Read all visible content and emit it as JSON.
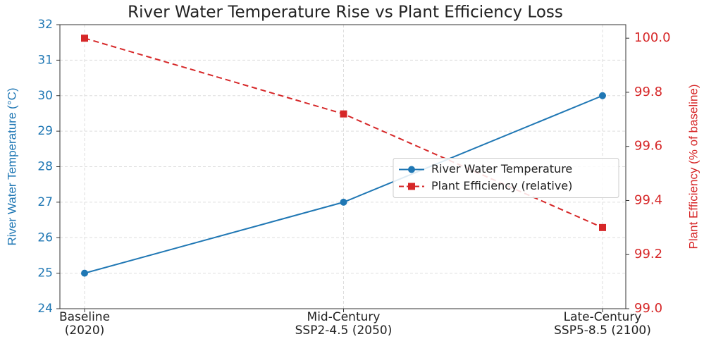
{
  "chart_data": {
    "type": "line",
    "title": "River Water Temperature Rise vs Plant Efficiency Loss",
    "categories": [
      "Baseline\n(2020)",
      "Mid-Century\nSSP2-4.5 (2050)",
      "Late-Century\nSSP5-8.5 (2100)"
    ],
    "ylabel": "River Water Temperature (°C)",
    "y2label": "Plant Efficiency (% of baseline)",
    "ylim": [
      24,
      32
    ],
    "yticks": [
      24,
      25,
      26,
      27,
      28,
      29,
      30,
      31,
      32
    ],
    "y2lim": [
      99.0,
      100.05
    ],
    "y2ticks": [
      {
        "value": 99.0,
        "label": "99.0"
      },
      99.2,
      99.4,
      99.6,
      99.8,
      {
        "value": 100.0,
        "label": "100.0"
      }
    ],
    "grid": true,
    "legend": "center right",
    "series": [
      {
        "name": "River Water Temperature",
        "color": "#1f77b4",
        "values": [
          25,
          27,
          30
        ],
        "marker": "circle",
        "linestyle": "solid"
      },
      {
        "name": "Plant Efficiency (relative)",
        "color": "#d62728",
        "values": [
          100.0,
          99.72,
          99.3
        ],
        "marker": "square",
        "linestyle": "dashed",
        "axis": "y2"
      }
    ]
  }
}
